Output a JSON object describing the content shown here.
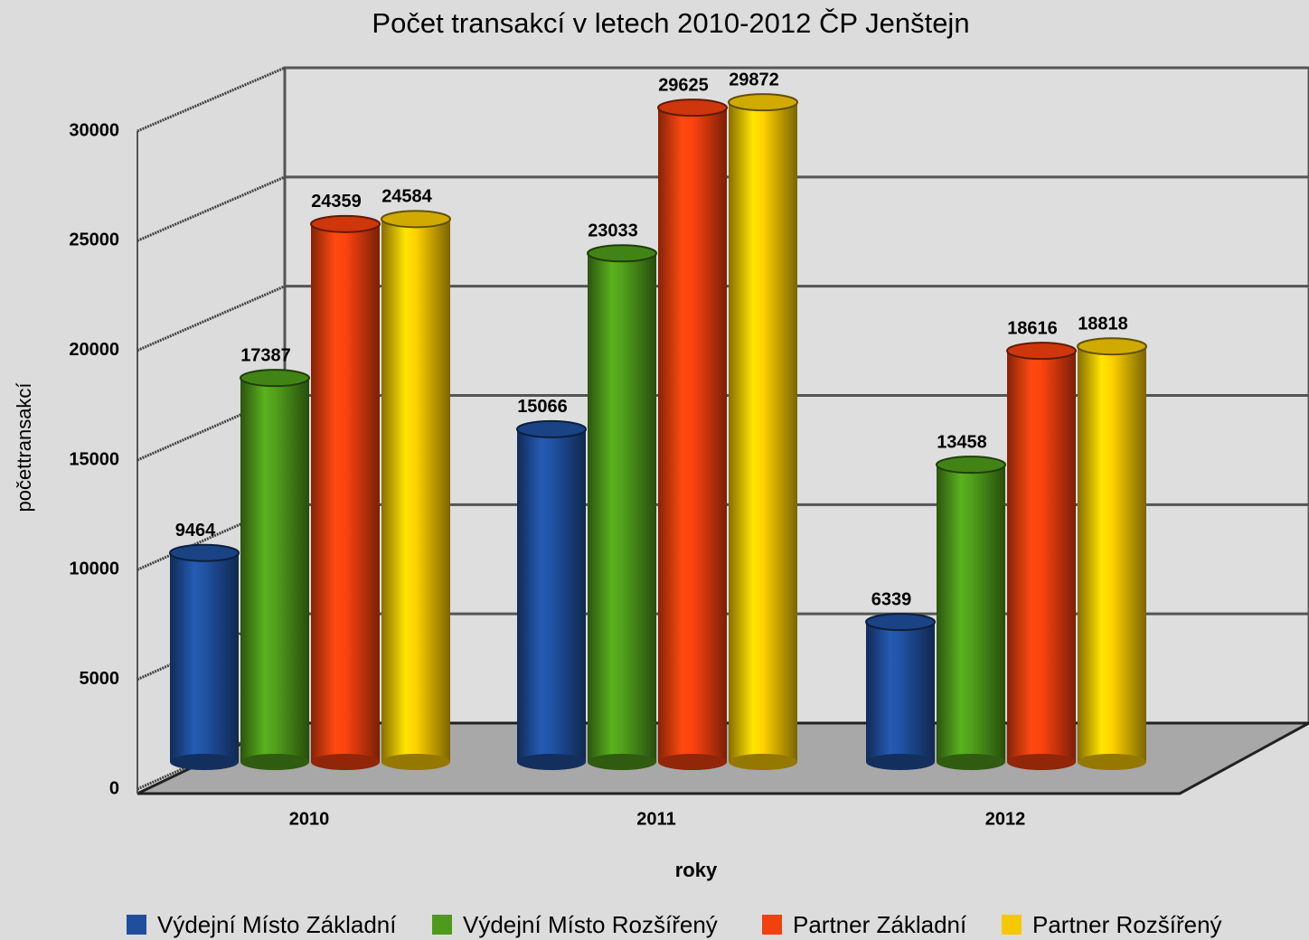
{
  "chart_data": {
    "type": "bar3d",
    "title": "Počet transakcí v letech 2010-2012 ČP Jenštejn",
    "x_label": "roky",
    "y_label": "počettransakcí",
    "categories": [
      "2010",
      "2011",
      "2012"
    ],
    "series": [
      {
        "name": "Výdejní Místo Základní",
        "color": "#1f4f9c",
        "values": [
          9464,
          15066,
          6339
        ]
      },
      {
        "name": "Výdejní Místo Rozšířený",
        "color": "#4e9a1a",
        "values": [
          17387,
          23033,
          13458
        ]
      },
      {
        "name": "Partner Základní",
        "color": "#f2400e",
        "values": [
          24359,
          29625,
          18616
        ]
      },
      {
        "name": "Partner Rozšířený",
        "color": "#f6c800",
        "values": [
          24584,
          29872,
          18818
        ]
      }
    ],
    "ylim": [
      0,
      30000
    ],
    "yticks": [
      0,
      5000,
      10000,
      15000,
      20000,
      25000,
      30000
    ],
    "grid": true,
    "legend": "bottom"
  }
}
